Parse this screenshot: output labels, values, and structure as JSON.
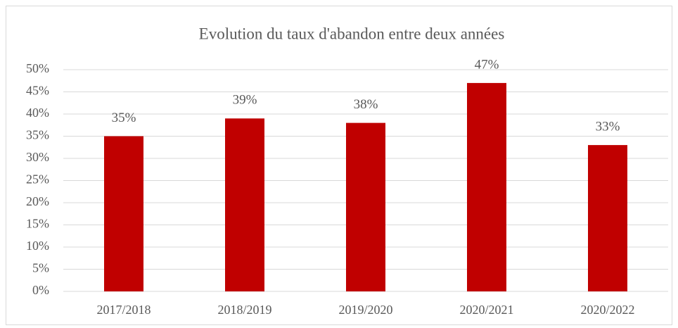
{
  "chart_data": {
    "type": "bar",
    "title": "Evolution du taux d'abandon entre deux années",
    "categories": [
      "2017/2018",
      "2018/2019",
      "2019/2020",
      "2020/2021",
      "2020/2022"
    ],
    "values": [
      35,
      39,
      38,
      47,
      33
    ],
    "value_labels": [
      "35%",
      "39%",
      "38%",
      "47%",
      "33%"
    ],
    "color": "#c00000",
    "ylim": [
      0,
      50
    ],
    "yticks": [
      {
        "value": 0,
        "label": "0%"
      },
      {
        "value": 5,
        "label": "5%"
      },
      {
        "value": 10,
        "label": "10%"
      },
      {
        "value": 15,
        "label": "15%"
      },
      {
        "value": 20,
        "label": "20%"
      },
      {
        "value": 25,
        "label": "25%"
      },
      {
        "value": 30,
        "label": "30%"
      },
      {
        "value": 35,
        "label": "35%"
      },
      {
        "value": 40,
        "label": "40%"
      },
      {
        "value": 45,
        "label": "45%"
      },
      {
        "value": 50,
        "label": "50%"
      }
    ],
    "grid": true
  }
}
